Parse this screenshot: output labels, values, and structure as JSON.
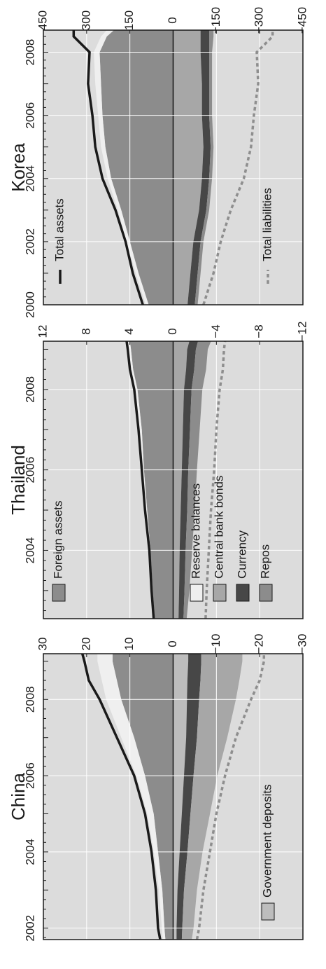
{
  "colors": {
    "plot_bg": "#dcdcdc",
    "foreign_assets": "#8c8c8c",
    "reserve_balances": "#efefef",
    "central_bank_bonds": "#a7a7a7",
    "currency": "#474747",
    "repos": "#8c8c8c",
    "government_deposits": "#bdbdbd",
    "total_assets": "#1a1a1a",
    "total_liabilities": "#8e8e8e",
    "grid": "#ffffff",
    "axis": "#1a1a1a"
  },
  "legend": {
    "total_assets": "Total assets",
    "total_liabilities": "Total liabilities",
    "foreign_assets": "Foreign assets",
    "reserve_balances": "Reserve balances",
    "central_bank_bonds": "Central bank bonds",
    "currency": "Currency",
    "repos": "Repos",
    "government_deposits": "Government deposits"
  },
  "chart_data": [
    {
      "type": "area",
      "title": "Korea",
      "xlim": [
        2000,
        2008.7
      ],
      "x_ticks": [
        "2000",
        "2002",
        "2004",
        "2006",
        "2008"
      ],
      "ylim": [
        -450,
        450
      ],
      "y_ticks": [
        "450",
        "300",
        "150",
        "0",
        "−150",
        "−300",
        "−450"
      ],
      "y_tick_values": [
        450,
        300,
        150,
        0,
        -150,
        -300,
        -450
      ],
      "x": [
        2000,
        2001,
        2002,
        2003,
        2004,
        2005,
        2006,
        2007,
        2008,
        2008.5,
        2008.7
      ],
      "series": [
        {
          "name": "Foreign assets",
          "kind": "asset",
          "values": [
            85,
            120,
            150,
            180,
            215,
            235,
            245,
            250,
            255,
            230,
            205
          ]
        },
        {
          "name": "Reserve balances",
          "kind": "asset",
          "values": [
            10,
            10,
            12,
            12,
            12,
            15,
            15,
            20,
            20,
            20,
            25
          ]
        },
        {
          "name": "Central bank bonds",
          "kind": "liability",
          "values": [
            -50,
            -60,
            -70,
            -90,
            -100,
            -105,
            -100,
            -100,
            -95,
            -95,
            -95
          ]
        },
        {
          "name": "Currency",
          "kind": "liability",
          "values": [
            -25,
            -25,
            -25,
            -25,
            -25,
            -25,
            -25,
            -25,
            -30,
            -30,
            -30
          ]
        },
        {
          "name": "Repos",
          "kind": "liability",
          "values": [
            -10,
            -10,
            -10,
            -10,
            -10,
            -10,
            -10,
            -10,
            -10,
            -15,
            -15
          ]
        }
      ],
      "lines": [
        {
          "name": "Total assets",
          "values": [
            105,
            140,
            165,
            200,
            245,
            270,
            280,
            295,
            290,
            345,
            345
          ]
        },
        {
          "name": "Total liabilities",
          "values": [
            -105,
            -140,
            -165,
            -200,
            -245,
            -270,
            -280,
            -295,
            -290,
            -345,
            -345
          ]
        }
      ]
    },
    {
      "type": "area",
      "title": "Thailand",
      "xlim": [
        2002.3,
        2009.2
      ],
      "x_ticks": [
        "2004",
        "2006",
        "2008"
      ],
      "ylim": [
        -12,
        12
      ],
      "y_ticks": [
        "12",
        "8",
        "4",
        "0",
        "−4",
        "−8",
        "−12"
      ],
      "y_tick_values": [
        12,
        8,
        4,
        0,
        -4,
        -8,
        -12
      ],
      "x": [
        2002.3,
        2003,
        2004,
        2005,
        2006,
        2007,
        2008,
        2008.5,
        2009,
        2009.2
      ],
      "series": [
        {
          "name": "Foreign assets",
          "kind": "asset",
          "values": [
            1.7,
            1.9,
            2.1,
            2.4,
            2.7,
            2.9,
            3.3,
            3.7,
            3.9,
            4.0
          ]
        },
        {
          "name": "Reserve balances",
          "kind": "asset",
          "values": [
            0.05,
            0.1,
            0.1,
            0.15,
            0.15,
            0.2,
            0.2,
            0.25,
            0.3,
            0.2
          ]
        },
        {
          "name": "Central bank bonds",
          "kind": "liability",
          "values": [
            -0.5,
            -0.55,
            -0.6,
            -0.7,
            -0.8,
            -0.9,
            -1.0,
            -1.2,
            -1.3,
            -1.5
          ]
        },
        {
          "name": "Currency",
          "kind": "liability",
          "values": [
            -0.45,
            -0.5,
            -0.55,
            -0.6,
            -0.6,
            -0.65,
            -0.7,
            -0.75,
            -0.8,
            -0.8
          ]
        },
        {
          "name": "Repos",
          "kind": "liability",
          "values": [
            -0.3,
            -0.45,
            -0.6,
            -0.7,
            -0.8,
            -0.9,
            -1.0,
            -1.1,
            -1.1,
            -1.2
          ]
        }
      ],
      "lines": [
        {
          "name": "Total assets",
          "values": [
            1.8,
            2.0,
            2.2,
            2.6,
            2.9,
            3.2,
            3.6,
            4.0,
            4.2,
            4.3
          ]
        },
        {
          "name": "Total liabilities",
          "values": [
            -3.0,
            -3.1,
            -3.3,
            -3.5,
            -3.8,
            -4.0,
            -4.3,
            -4.6,
            -4.7,
            -4.8
          ]
        }
      ]
    },
    {
      "type": "area",
      "title": "China",
      "xlim": [
        2001.7,
        2009.2
      ],
      "x_ticks": [
        "2002",
        "2004",
        "2006",
        "2008"
      ],
      "ylim": [
        -30,
        30
      ],
      "y_ticks": [
        "30",
        "20",
        "10",
        "0",
        "−10",
        "−20",
        "−30"
      ],
      "y_tick_values": [
        30,
        20,
        10,
        0,
        -10,
        -20,
        -30
      ],
      "x": [
        2001.7,
        2002,
        2003,
        2004,
        2005,
        2006,
        2007,
        2008,
        2008.5,
        2009,
        2009.2
      ],
      "series": [
        {
          "name": "Foreign assets",
          "kind": "asset",
          "values": [
            1.8,
            2.0,
            2.5,
            3.5,
            4.5,
            6.5,
            9.0,
            12.0,
            13.0,
            14.0,
            14.0
          ]
        },
        {
          "name": "Reserve balances",
          "kind": "asset",
          "values": [
            0.6,
            0.6,
            0.8,
            1.0,
            1.5,
            2.0,
            3.0,
            3.5,
            3.5,
            3.5,
            3.5
          ]
        },
        {
          "name": "Government deposits",
          "kind": "liability",
          "values": [
            -0.8,
            -0.8,
            -1.0,
            -1.5,
            -2.0,
            -2.5,
            -3.0,
            -3.2,
            -3.3,
            -3.5,
            -3.5
          ]
        },
        {
          "name": "Currency",
          "kind": "liability",
          "values": [
            -1.2,
            -1.3,
            -1.5,
            -1.8,
            -2.0,
            -2.2,
            -2.5,
            -2.8,
            -3.0,
            -3.0,
            -3.0
          ]
        },
        {
          "name": "Central bank bonds",
          "kind": "liability",
          "values": [
            -2.3,
            -2.6,
            -3.0,
            -3.5,
            -4.5,
            -5.5,
            -7.0,
            -8.5,
            -9.0,
            -9.5,
            -9.5
          ]
        }
      ],
      "lines": [
        {
          "name": "Total assets",
          "values": [
            3.0,
            3.5,
            4.0,
            5.0,
            6.5,
            9.0,
            13.0,
            17.0,
            19.5,
            20.5,
            21.0
          ]
        },
        {
          "name": "Total liabilities",
          "values": [
            -5.5,
            -6.0,
            -7.0,
            -8.5,
            -10.0,
            -12.0,
            -14.5,
            -18.0,
            -20.0,
            -21.0,
            -21.0
          ]
        }
      ]
    }
  ]
}
